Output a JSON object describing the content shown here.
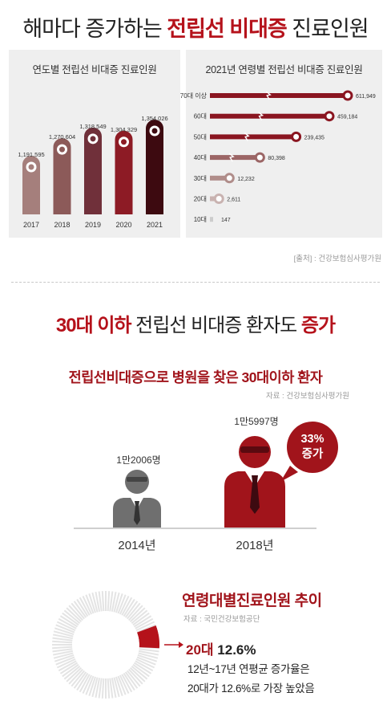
{
  "headline": {
    "pre": "해마다 증가하는 ",
    "highlight": "전립선 비대증",
    "post": " 진료인원"
  },
  "chart_data": [
    {
      "type": "bar",
      "title": "연도별 전립선 비대증 진료인원",
      "categories": [
        "2017",
        "2018",
        "2019",
        "2020",
        "2021"
      ],
      "values": [
        1191595,
        1270604,
        1318549,
        1304329,
        1354026
      ],
      "value_labels": [
        "1,191,595",
        "1,270,604",
        "1,318,549",
        "1,304,329",
        "1,354,026"
      ],
      "colors": [
        "#a57f7c",
        "#8c5a59",
        "#70303a",
        "#8d1b25",
        "#3d0a10"
      ]
    },
    {
      "type": "bar",
      "orientation": "horizontal",
      "title": "2021년 연령별 전립선 비대증 진료인원",
      "categories": [
        "70대 이상",
        "60대",
        "50대",
        "40대",
        "30대",
        "20대",
        "10대"
      ],
      "values": [
        611949,
        459184,
        239435,
        80398,
        12232,
        2611,
        147
      ],
      "value_labels": [
        "611,949",
        "459,184",
        "239,435",
        "80,398",
        "12,232",
        "2,611",
        "147"
      ],
      "colors": [
        "#8a1520",
        "#8a1520",
        "#8a1520",
        "#9b6565",
        "#b08d8a",
        "#c9b3b1",
        "#cccccc"
      ]
    },
    {
      "type": "pie",
      "title": "연령대별진료인원 추이",
      "source": "자료 : 국민건강보험공단",
      "highlight": {
        "label": "20대",
        "value": "12.6%",
        "percent": 12.6
      }
    }
  ],
  "source_top": "[출처] : 건강보험심사평가원",
  "section2": {
    "pre": "30대 이하",
    "mid": " 전립선 비대증 환자도 ",
    "post": "증가"
  },
  "subtitle": "전립선비대증으로 병원을 찾은 30대이하 환자",
  "source_mid": "자료 : 건강보험심사평가원",
  "comparison": {
    "y2014": {
      "year": "2014년",
      "count": "1만2006명"
    },
    "y2018": {
      "year": "2018년",
      "count": "1만5997명"
    },
    "bubble": {
      "pct": "33%",
      "word": "증가"
    }
  },
  "trend": {
    "desc1": "12년~17년 연평균 증가율은",
    "desc2": "20대가 12.6%로 가장 높았음"
  },
  "colors": {
    "accent": "#b5121b",
    "panel": "#efefef"
  }
}
